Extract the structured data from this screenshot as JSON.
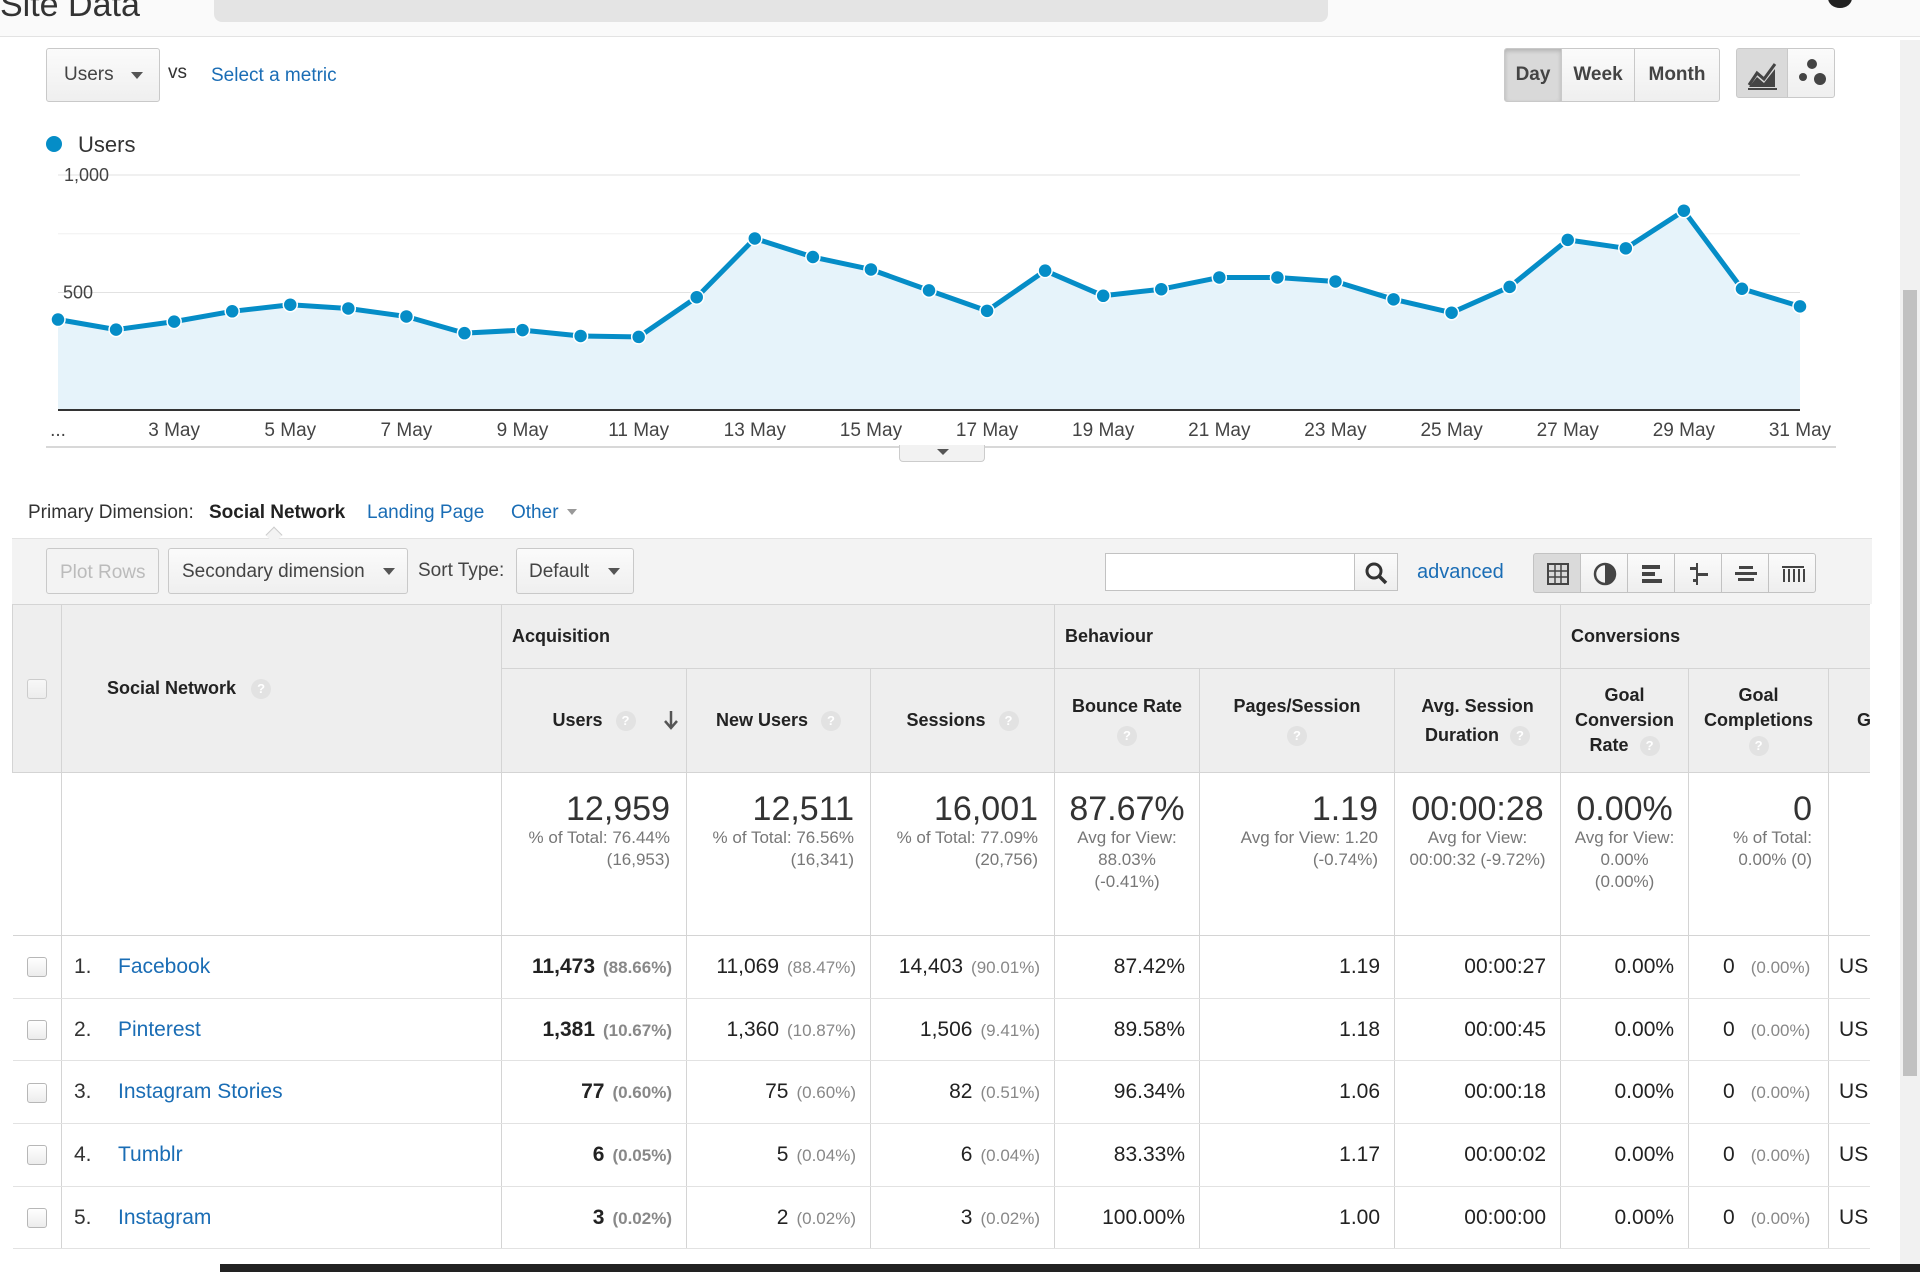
{
  "header": {
    "title": "Site Data"
  },
  "chart_controls": {
    "metric": "Users",
    "vs_label": "vs",
    "select_metric": "Select a metric",
    "granularity": [
      "Day",
      "Week",
      "Month"
    ],
    "active_granularity": "Day",
    "legend_label": "Users",
    "series_color": "#058dc7"
  },
  "chart_data": {
    "type": "area",
    "series": [
      {
        "name": "Users",
        "values": [
          385,
          342,
          376,
          420,
          448,
          432,
          398,
          327,
          340,
          315,
          311,
          480,
          730,
          651,
          598,
          509,
          422,
          593,
          486,
          514,
          564,
          564,
          547,
          471,
          414,
          524,
          724,
          688,
          848,
          516,
          441
        ]
      }
    ],
    "x_tick_labels": [
      "...",
      "3 May",
      "5 May",
      "7 May",
      "9 May",
      "11 May",
      "13 May",
      "15 May",
      "17 May",
      "19 May",
      "21 May",
      "23 May",
      "25 May",
      "27 May",
      "29 May",
      "31 May"
    ],
    "y_tick_labels": [
      "1,000",
      "500"
    ],
    "ylim": [
      0,
      1000
    ],
    "grid": true
  },
  "dimension": {
    "label": "Primary Dimension:",
    "active": "Social Network",
    "options": [
      "Landing Page",
      "Other"
    ]
  },
  "toolbar": {
    "plot_rows": "Plot Rows",
    "secondary_dimension": "Secondary dimension",
    "sort_type_label": "Sort Type:",
    "sort_type_value": "Default",
    "search_value": "",
    "advanced": "advanced"
  },
  "table": {
    "groups": [
      "Acquisition",
      "Behaviour",
      "Conversions"
    ],
    "dim_header": "Social Network",
    "columns": [
      "Users",
      "New Users",
      "Sessions",
      "Bounce Rate",
      "Pages/Session",
      "Avg. Session Duration",
      "Goal Conversion Rate",
      "Goal Completions",
      "G"
    ],
    "totals": {
      "users": {
        "value": "12,959",
        "sub": "% of Total: 76.44% (16,953)"
      },
      "new_users": {
        "value": "12,511",
        "sub": "% of Total: 76.56% (16,341)"
      },
      "sessions": {
        "value": "16,001",
        "sub": "% of Total: 77.09% (20,756)"
      },
      "bounce_rate": {
        "value": "87.67%",
        "sub": "Avg for View: 88.03% (-0.41%)"
      },
      "pages_session": {
        "value": "1.19",
        "sub": "Avg for View: 1.20 (-0.74%)"
      },
      "avg_duration": {
        "value": "00:00:28",
        "sub": "Avg for View: 00:00:32 (-9.72%)"
      },
      "conv_rate": {
        "value": "0.00%",
        "sub": "Avg for View: 0.00% (0.00%)"
      },
      "completions": {
        "value": "0",
        "sub": "% of Total: 0.00% (0)"
      }
    },
    "rows": [
      {
        "rank": "1.",
        "name": "Facebook",
        "users": "11,473",
        "users_pct": "(88.66%)",
        "new_users": "11,069",
        "new_users_pct": "(88.47%)",
        "sessions": "14,403",
        "sessions_pct": "(90.01%)",
        "bounce": "87.42%",
        "pages": "1.19",
        "duration": "00:00:27",
        "conv": "0.00%",
        "comp": "0",
        "comp_pct": "(0.00%)",
        "extra": "US"
      },
      {
        "rank": "2.",
        "name": "Pinterest",
        "users": "1,381",
        "users_pct": "(10.67%)",
        "new_users": "1,360",
        "new_users_pct": "(10.87%)",
        "sessions": "1,506",
        "sessions_pct": "(9.41%)",
        "bounce": "89.58%",
        "pages": "1.18",
        "duration": "00:00:45",
        "conv": "0.00%",
        "comp": "0",
        "comp_pct": "(0.00%)",
        "extra": "US"
      },
      {
        "rank": "3.",
        "name": "Instagram Stories",
        "users": "77",
        "users_pct": "(0.60%)",
        "new_users": "75",
        "new_users_pct": "(0.60%)",
        "sessions": "82",
        "sessions_pct": "(0.51%)",
        "bounce": "96.34%",
        "pages": "1.06",
        "duration": "00:00:18",
        "conv": "0.00%",
        "comp": "0",
        "comp_pct": "(0.00%)",
        "extra": "US"
      },
      {
        "rank": "4.",
        "name": "Tumblr",
        "users": "6",
        "users_pct": "(0.05%)",
        "new_users": "5",
        "new_users_pct": "(0.04%)",
        "sessions": "6",
        "sessions_pct": "(0.04%)",
        "bounce": "83.33%",
        "pages": "1.17",
        "duration": "00:00:02",
        "conv": "0.00%",
        "comp": "0",
        "comp_pct": "(0.00%)",
        "extra": "US"
      },
      {
        "rank": "5.",
        "name": "Instagram",
        "users": "3",
        "users_pct": "(0.02%)",
        "new_users": "2",
        "new_users_pct": "(0.02%)",
        "sessions": "3",
        "sessions_pct": "(0.02%)",
        "bounce": "100.00%",
        "pages": "1.00",
        "duration": "00:00:00",
        "conv": "0.00%",
        "comp": "0",
        "comp_pct": "(0.00%)",
        "extra": "US"
      }
    ]
  }
}
